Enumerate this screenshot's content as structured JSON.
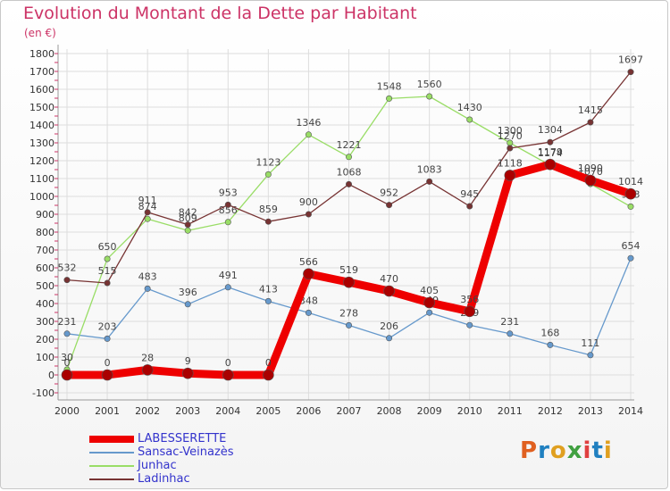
{
  "title": "Evolution du Montant de la Dette par Habitant",
  "subtitle": "(en €)",
  "logo": {
    "text": "Proxiti",
    "colors": [
      "#e06020",
      "#2080c0",
      "#e0a020",
      "#40a040",
      "#e04040",
      "#2080c0",
      "#e0a020"
    ]
  },
  "chart_data": {
    "type": "line",
    "x": [
      "2000",
      "2001",
      "2002",
      "2003",
      "2004",
      "2005",
      "2006",
      "2007",
      "2008",
      "2009",
      "2010",
      "2011",
      "2012",
      "2013",
      "2014"
    ],
    "ylim": [
      -100,
      1800
    ],
    "yticks": [
      -100,
      0,
      100,
      200,
      300,
      400,
      500,
      600,
      700,
      800,
      900,
      1000,
      1100,
      1200,
      1300,
      1400,
      1500,
      1600,
      1700,
      1800
    ],
    "grid": true,
    "legend_position": "bottom-left",
    "series": [
      {
        "name": "LABESSERETTE",
        "color": "#ee0000",
        "width": 9,
        "values": [
          0,
          0,
          28,
          9,
          0,
          0,
          566,
          519,
          470,
          405,
          356,
          1118,
          1179,
          1090,
          1014
        ]
      },
      {
        "name": "Sansac-Veinazès",
        "color": "#6699cc",
        "width": 1.3,
        "values": [
          231,
          203,
          483,
          396,
          491,
          413,
          348,
          278,
          206,
          349,
          279,
          231,
          168,
          111,
          654
        ]
      },
      {
        "name": "Junhac",
        "color": "#99dd66",
        "width": 1.3,
        "values": [
          30,
          650,
          874,
          809,
          856,
          1123,
          1346,
          1221,
          1548,
          1560,
          1430,
          1300,
          1174,
          1070,
          943
        ]
      },
      {
        "name": "Ladinhac",
        "color": "#773333",
        "width": 1.3,
        "values": [
          532,
          515,
          911,
          842,
          953,
          859,
          900,
          1068,
          952,
          1083,
          945,
          1270,
          1304,
          1415,
          1697
        ]
      }
    ]
  }
}
